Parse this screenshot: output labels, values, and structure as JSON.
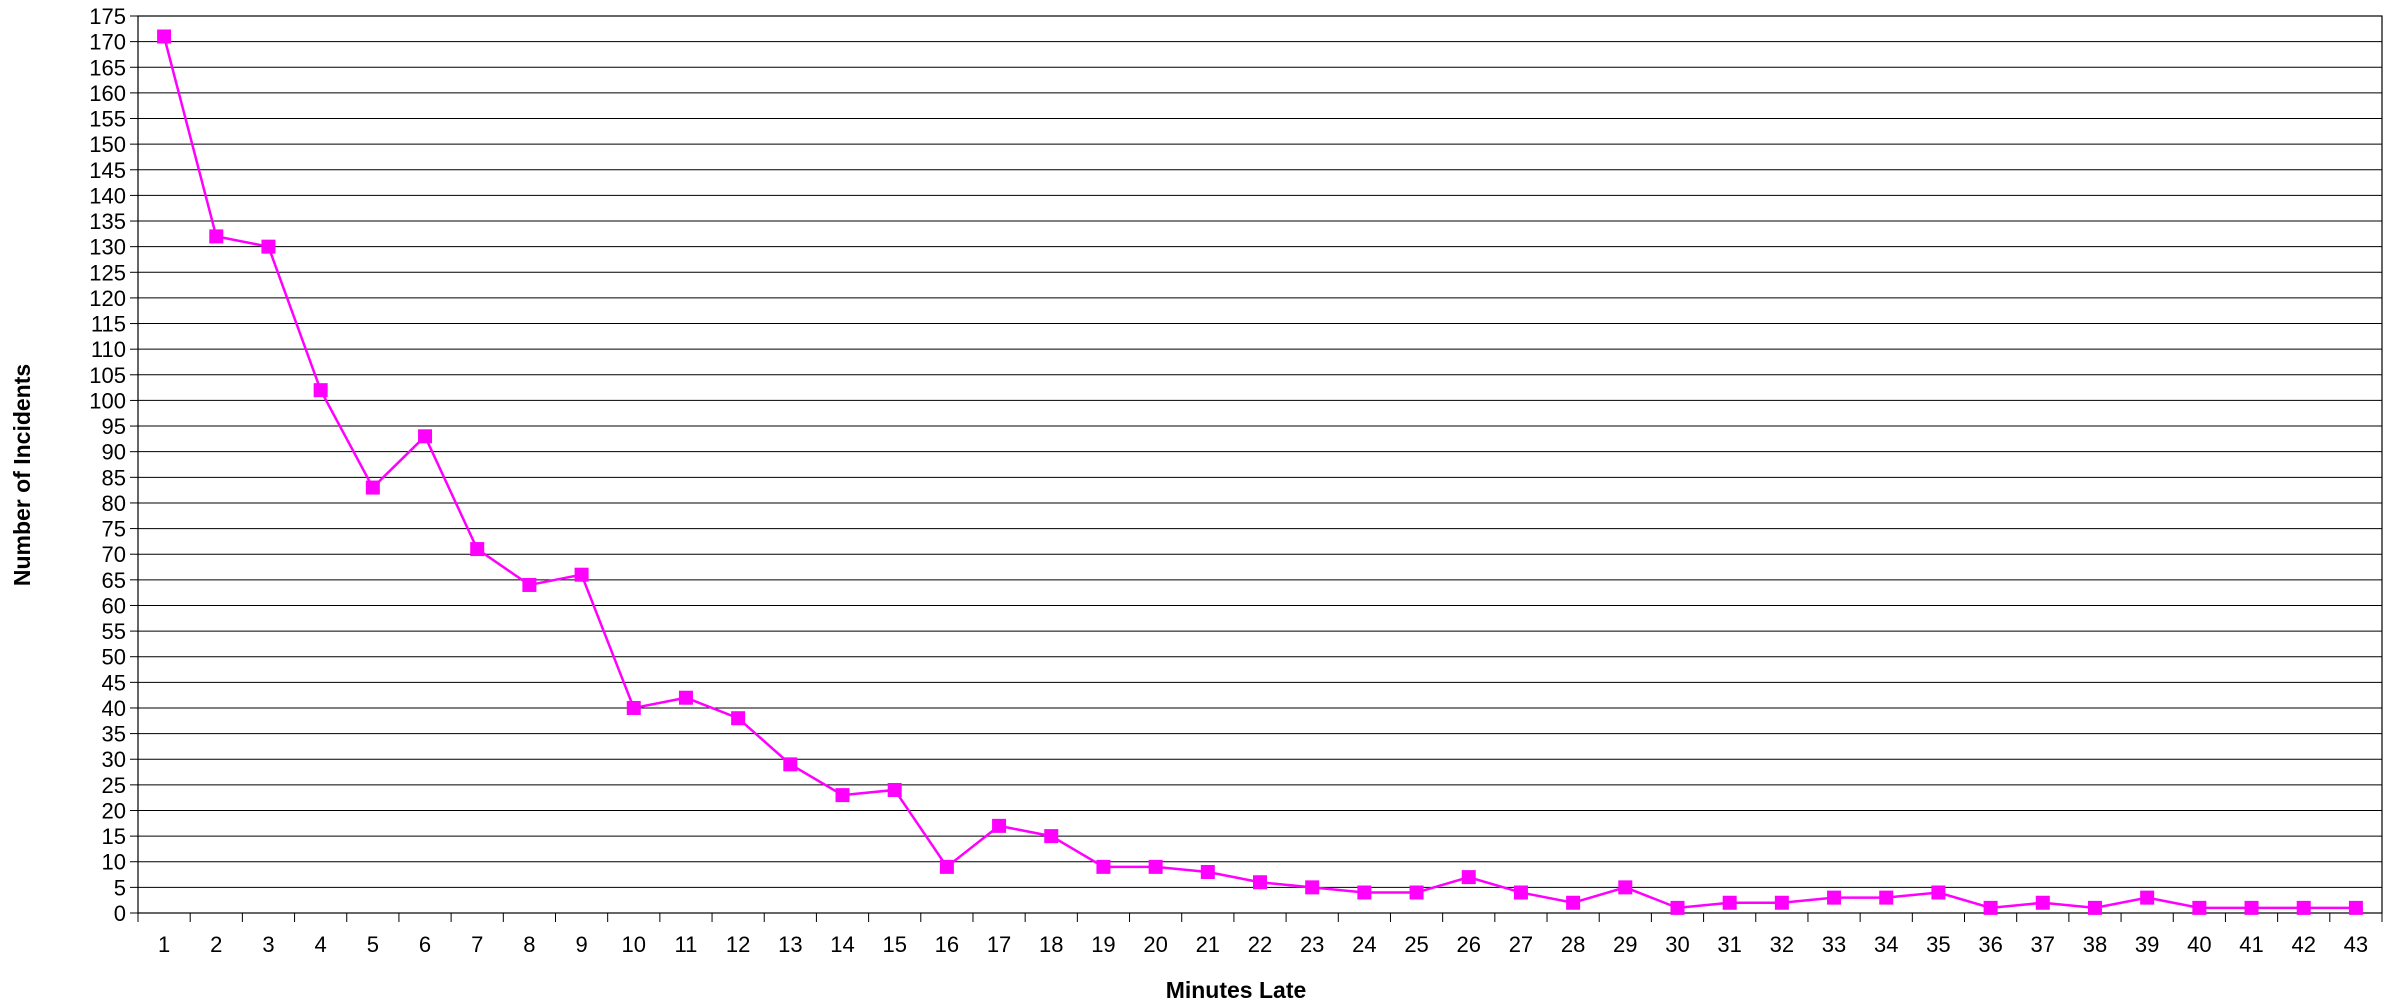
{
  "chart_data": {
    "type": "line",
    "title": "",
    "xlabel": "Minutes Late",
    "ylabel": "Number of Incidents",
    "x": [
      1,
      2,
      3,
      4,
      5,
      6,
      7,
      8,
      9,
      10,
      11,
      12,
      13,
      14,
      15,
      16,
      17,
      18,
      19,
      20,
      21,
      22,
      23,
      24,
      25,
      26,
      27,
      28,
      29,
      30,
      31,
      32,
      33,
      34,
      35,
      36,
      37,
      38,
      39,
      40,
      41,
      42,
      43
    ],
    "series": [
      {
        "values": [
          171,
          132,
          130,
          102,
          83,
          93,
          71,
          64,
          66,
          40,
          42,
          38,
          29,
          23,
          24,
          9,
          17,
          15,
          9,
          9,
          8,
          6,
          5,
          4,
          4,
          7,
          4,
          2,
          5,
          1,
          2,
          2,
          3,
          3,
          4,
          1,
          2,
          1,
          3,
          1,
          1,
          1,
          1
        ]
      }
    ],
    "ylim": [
      0,
      175
    ],
    "ytick_step": 5,
    "grid": true,
    "marker": "square",
    "colors": {
      "series": "#ff00ff",
      "grid": "#000000"
    }
  }
}
